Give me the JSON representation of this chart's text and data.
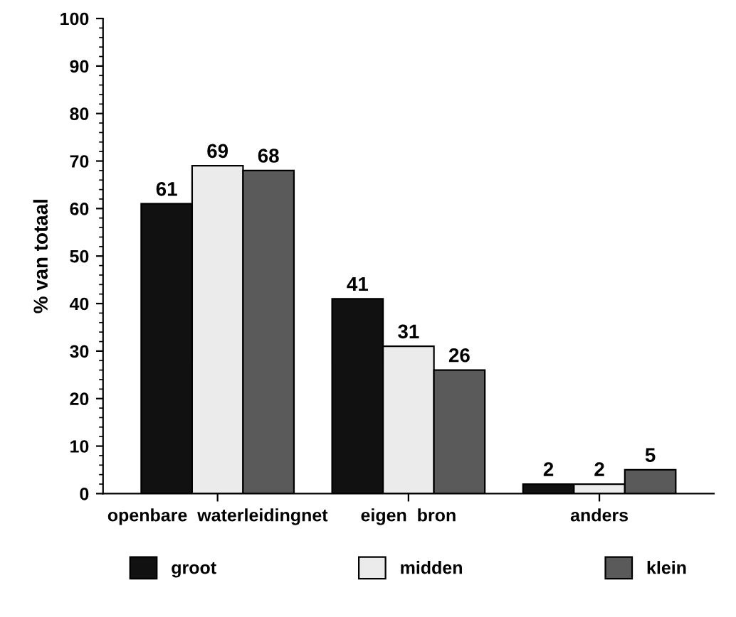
{
  "chart_data": {
    "type": "bar",
    "ylabel": "% van totaal",
    "categories": [
      "openbare  waterleidingnet",
      "eigen  bron",
      "anders"
    ],
    "series": [
      {
        "name": "groot",
        "color": "#111111",
        "values": [
          61,
          41,
          2
        ]
      },
      {
        "name": "midden",
        "color": "#ebebeb",
        "values": [
          69,
          31,
          2
        ]
      },
      {
        "name": "klein",
        "color": "#5a5a5a",
        "values": [
          68,
          26,
          5
        ]
      }
    ],
    "ylim": [
      0,
      100
    ],
    "yticks": [
      0,
      10,
      20,
      30,
      40,
      50,
      60,
      70,
      80,
      90,
      100
    ],
    "data_labels": true,
    "grid": false,
    "legend": "bottom"
  }
}
